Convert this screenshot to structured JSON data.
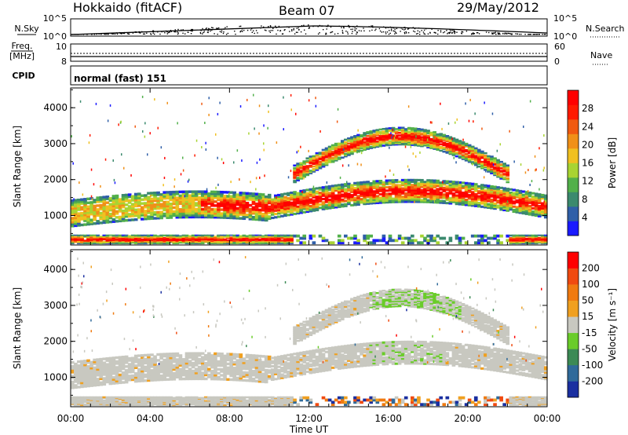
{
  "header": {
    "station": "Hokkaido (fitACF)",
    "beam": "Beam 07",
    "date": "29/May/2012"
  },
  "top_panels": {
    "nsky_label": "N.Sky",
    "nsearch_label": "N.Search",
    "nsky_ticks": [
      "10^5",
      "10^0"
    ],
    "nsearch_ticks": [
      "10^5",
      "10^0"
    ],
    "freq_label_1": "Freq.",
    "freq_label_2": "[MHz]",
    "freq_ticks": [
      "10",
      "8"
    ],
    "nave_label": "Nave",
    "nave_ticks": [
      "60",
      "0"
    ],
    "cpid_label": "CPID",
    "cpid_value": "normal (fast) 151"
  },
  "chart_data": [
    {
      "type": "heatmap",
      "name": "power",
      "ylabel": "Slant Range [km]",
      "xlabel": "",
      "xlim": [
        "00:00",
        "24:00"
      ],
      "ylim": [
        180,
        4550
      ],
      "yticks": [
        "1000",
        "2000",
        "3000",
        "4000"
      ],
      "colorbar": {
        "label": "Power [dB]",
        "range": [
          0,
          32
        ],
        "ticks": [
          "4",
          "8",
          "12",
          "16",
          "20",
          "24",
          "28"
        ],
        "colors": [
          "#1a1aff",
          "#2f5fa8",
          "#3b8a6e",
          "#52b04a",
          "#a8d432",
          "#f0c020",
          "#f09018",
          "#f05a10",
          "#ff1a00",
          "#ff0000"
        ]
      }
    },
    {
      "type": "heatmap",
      "name": "velocity",
      "ylabel": "Slant Range [km]",
      "xlabel": "Time UT",
      "xlim": [
        "00:00",
        "24:00"
      ],
      "ylim": [
        180,
        4550
      ],
      "yticks": [
        "1000",
        "2000",
        "3000",
        "4000"
      ],
      "xticks": [
        "00:00",
        "04:00",
        "08:00",
        "12:00",
        "16:00",
        "20:00",
        "00:00"
      ],
      "colorbar": {
        "label": "Velocity [m s⁻¹]",
        "ticks": [
          "200",
          "100",
          "50",
          "15",
          "-15",
          "-50",
          "-100",
          "-200"
        ],
        "colors": [
          "#1a2fa0",
          "#2f6a9a",
          "#3c8a55",
          "#6acc2a",
          "#c8c8c0",
          "#f0a020",
          "#f07a10",
          "#f04a10",
          "#ff0000"
        ]
      }
    }
  ]
}
